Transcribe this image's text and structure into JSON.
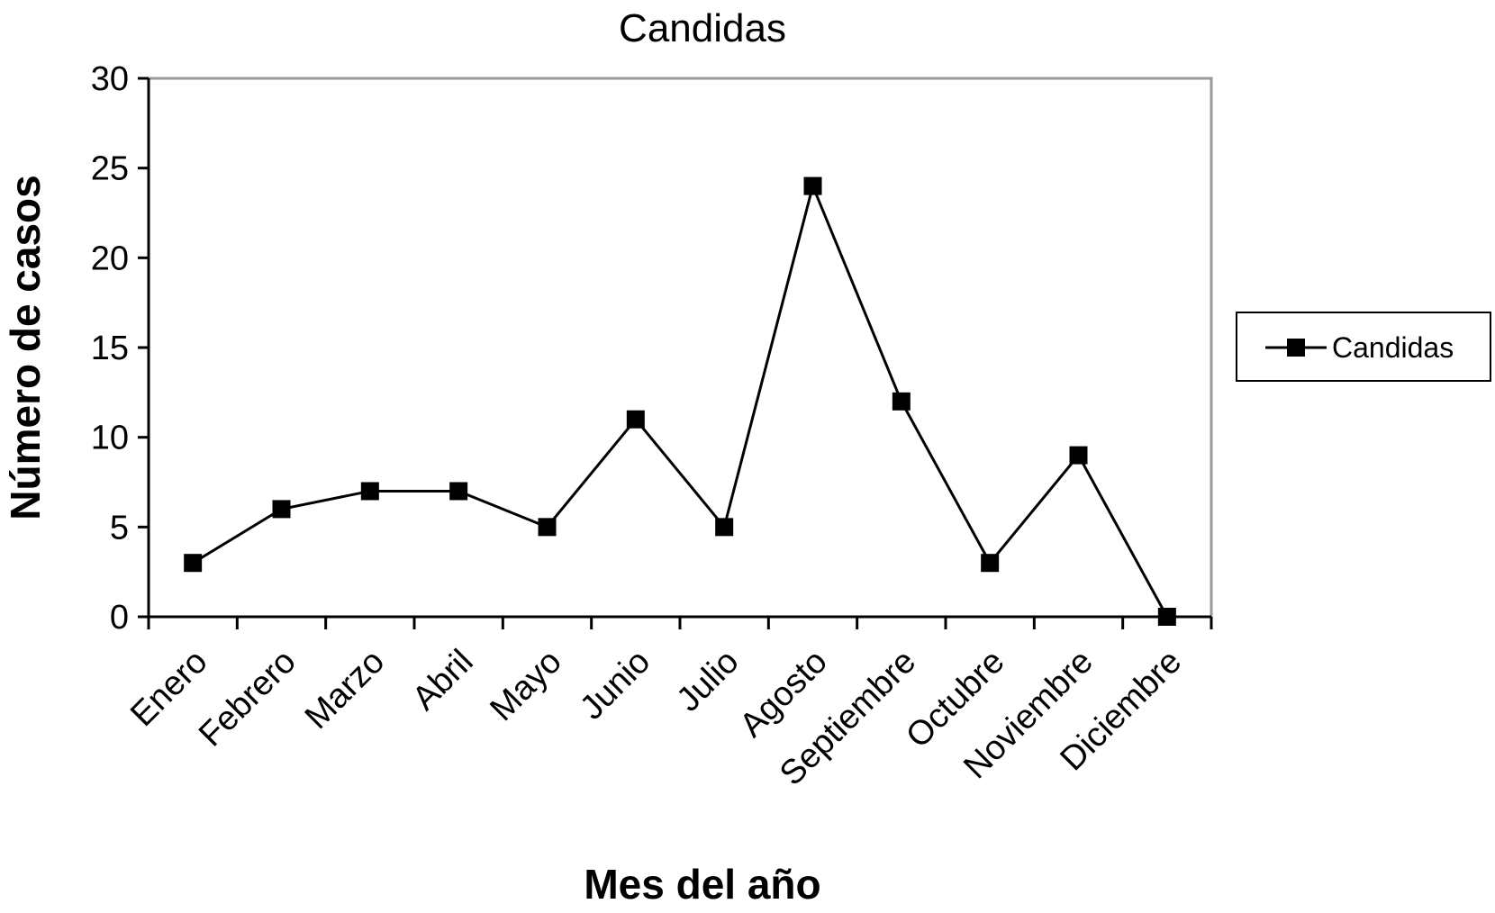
{
  "chart_data": {
    "type": "line",
    "title": "Candidas",
    "xlabel": "Mes del año",
    "ylabel": "Número de casos",
    "categories": [
      "Enero",
      "Febrero",
      "Marzo",
      "Abril",
      "Mayo",
      "Junio",
      "Julio",
      "Agosto",
      "Septiembre",
      "Octubre",
      "Noviembre",
      "Diciembre"
    ],
    "series": [
      {
        "name": "Candidas",
        "values": [
          3,
          6,
          7,
          7,
          5,
          11,
          5,
          24,
          12,
          3,
          9,
          0
        ],
        "color": "#000000",
        "marker": "square"
      }
    ],
    "ylim": [
      0,
      30
    ],
    "yticks": [
      "0",
      "5",
      "10",
      "15",
      "20",
      "25",
      "30"
    ],
    "grid": false,
    "legend": "right"
  }
}
